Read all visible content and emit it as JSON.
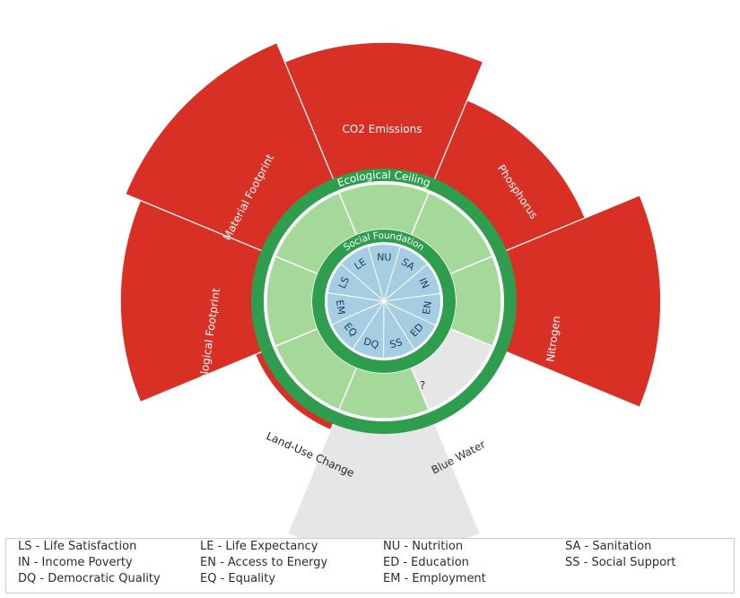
{
  "colors": {
    "overshoot_red": "#d93026",
    "no_data_grey": "#e6e6e6",
    "ecological_ring": "#2e9e4e",
    "safe_space_green": "#a4d999",
    "social_ring": "#2e9e4e",
    "social_core_blue": "#a6cee3",
    "separator": "#ffffff"
  },
  "diagram": {
    "ecological_ceiling_label": "Ecological Ceiling",
    "social_foundation_label": "Social Foundation",
    "ecological_sectors": [
      {
        "label": "CO2 Emissions",
        "status": "overshoot",
        "level": 0.86
      },
      {
        "label": "Phosphorus",
        "status": "overshoot",
        "level": 0.58
      },
      {
        "label": "Nitrogen",
        "status": "overshoot",
        "level": 0.98
      },
      {
        "label": "?",
        "status": "unknown",
        "level": 0.0
      },
      {
        "label": "Blue Water",
        "status": "no-data",
        "level": 0.81
      },
      {
        "label": "Land-Use Change",
        "status": "overshoot",
        "level": 0.05
      },
      {
        "label": "Ecological Footprint",
        "status": "overshoot",
        "level": 0.89
      },
      {
        "label": "Material Footprint",
        "status": "overshoot",
        "level": 1.0
      }
    ],
    "social_codes": [
      "NU",
      "SA",
      "IN",
      "EN",
      "ED",
      "SS",
      "DQ",
      "EQ",
      "EM",
      "LS",
      "LE"
    ]
  },
  "legend": [
    [
      "LS - Life Satisfaction",
      "LE - Life Expectancy",
      "NU - Nutrition",
      "SA - Sanitation"
    ],
    [
      "IN - Income Poverty",
      "EN - Access to Energy",
      "ED - Education",
      "SS - Social Support"
    ],
    [
      "DQ - Democratic Quality",
      "EQ - Equality",
      "EM - Employment"
    ]
  ]
}
